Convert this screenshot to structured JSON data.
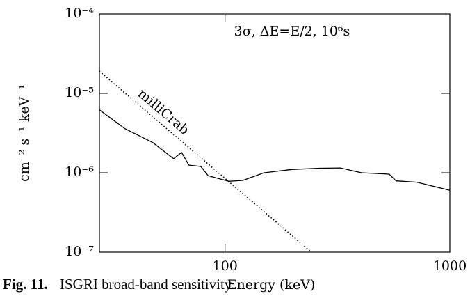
{
  "chart_data": {
    "type": "line",
    "annotation": "3σ, ΔE=E/2, 10⁶s",
    "x_label": "Energy (keV)",
    "y_label": "cm⁻² s⁻¹ keV⁻¹",
    "caption_label": "Fig. 11.",
    "caption": "ISGRI broad-band sensitivity.",
    "xscale": "log",
    "yscale": "log",
    "xlim": [
      27.6,
      1000
    ],
    "ylim": [
      1e-07,
      0.0001
    ],
    "xticks": [
      100,
      1000
    ],
    "yticks": [
      {
        "value": 1e-07,
        "label": "10⁻⁷"
      },
      {
        "value": 1e-06,
        "label": "10⁻⁶"
      },
      {
        "value": 1e-05,
        "label": "10⁻⁵"
      },
      {
        "value": 0.0001,
        "label": "10⁻⁴"
      }
    ],
    "series": [
      {
        "color": "#000",
        "dash": "solid",
        "x": [
          27.6,
          35.8,
          47.7,
          59,
          64,
          69,
          78,
          84,
          90,
          104,
          120,
          149,
          198,
          263,
          326,
          404,
          537,
          577,
          714,
          1000
        ],
        "values": [
          6.2e-06,
          3.6e-06,
          2.4e-06,
          1.5e-06,
          1.8e-06,
          1.25e-06,
          1.2e-06,
          9.2e-07,
          8.7e-07,
          7.8e-07,
          8e-07,
          1e-06,
          1.1e-06,
          1.14e-06,
          1.15e-06,
          1e-06,
          9.6e-07,
          7.9e-07,
          7.6e-07,
          6e-07
        ]
      },
      {
        "name": "milliCrab",
        "color": "#000",
        "dash": "dotted",
        "x": [
          27.6,
          242
        ],
        "values": [
          1.9e-05,
          1e-07
        ]
      }
    ]
  }
}
